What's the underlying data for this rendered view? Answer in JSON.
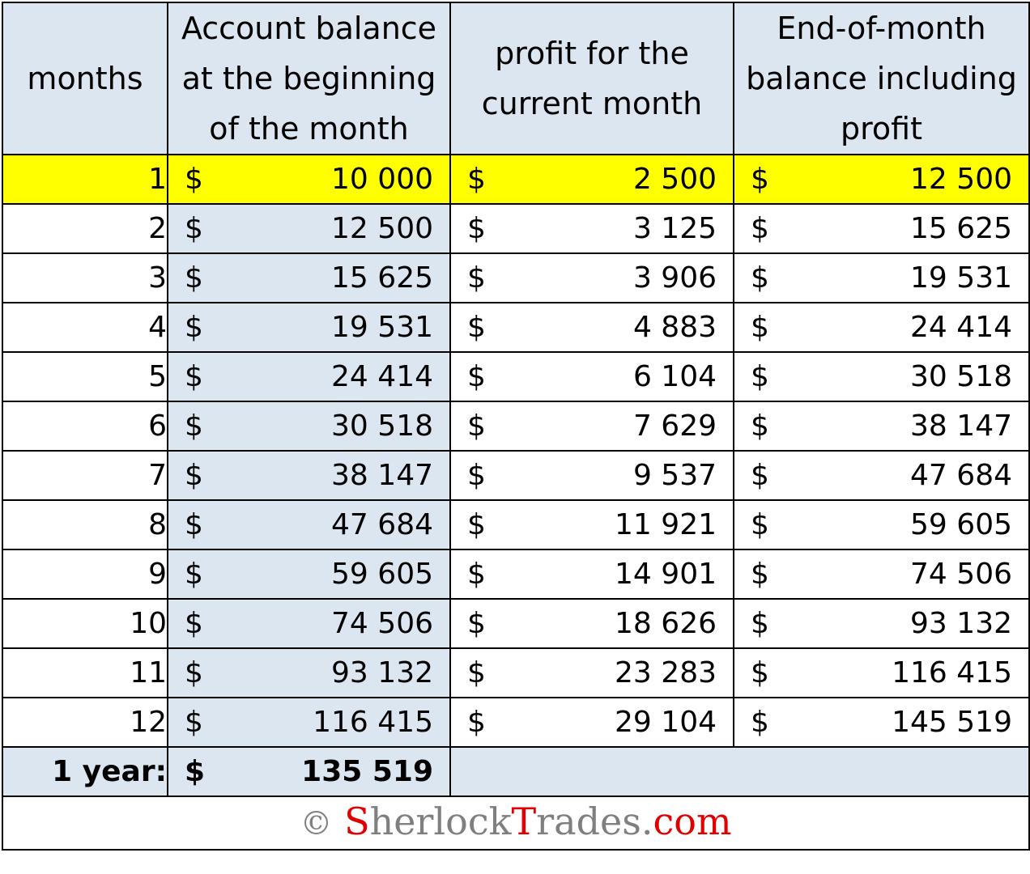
{
  "headers": {
    "months": "months",
    "balance_start": "Account balance at the beginning of the month",
    "profit": "profit for the current month",
    "balance_end": "End-of-month balance including profit"
  },
  "currency_symbol": "$",
  "rows": [
    {
      "month": "1",
      "start": "10 000",
      "profit": "2 500",
      "end": "12 500",
      "highlighted": true
    },
    {
      "month": "2",
      "start": "12 500",
      "profit": "3 125",
      "end": "15 625"
    },
    {
      "month": "3",
      "start": "15 625",
      "profit": "3 906",
      "end": "19 531"
    },
    {
      "month": "4",
      "start": "19 531",
      "profit": "4 883",
      "end": "24 414"
    },
    {
      "month": "5",
      "start": "24 414",
      "profit": "6 104",
      "end": "30 518"
    },
    {
      "month": "6",
      "start": "30 518",
      "profit": "7 629",
      "end": "38 147"
    },
    {
      "month": "7",
      "start": "38 147",
      "profit": "9 537",
      "end": "47 684"
    },
    {
      "month": "8",
      "start": "47 684",
      "profit": "11 921",
      "end": "59 605"
    },
    {
      "month": "9",
      "start": "59 605",
      "profit": "14 901",
      "end": "74 506"
    },
    {
      "month": "10",
      "start": "74 506",
      "profit": "18 626",
      "end": "93 132"
    },
    {
      "month": "11",
      "start": "93 132",
      "profit": "23 283",
      "end": "116 415"
    },
    {
      "month": "12",
      "start": "116 415",
      "profit": "29 104",
      "end": "145 519"
    }
  ],
  "total": {
    "label": "1 year:",
    "value": "135 519"
  },
  "footer": {
    "copyright_symbol": "©",
    "brand_part1_initial": "S",
    "brand_part1_rest": "herlock",
    "brand_part2_initial": "T",
    "brand_part2_rest": "rades",
    "brand_dot": ".",
    "brand_tld": "com"
  },
  "colors": {
    "header_bg": "#dce6f1",
    "highlight_row": "#ffff00",
    "brand_red": "#e00000",
    "brand_gray": "#7f7f7f"
  }
}
